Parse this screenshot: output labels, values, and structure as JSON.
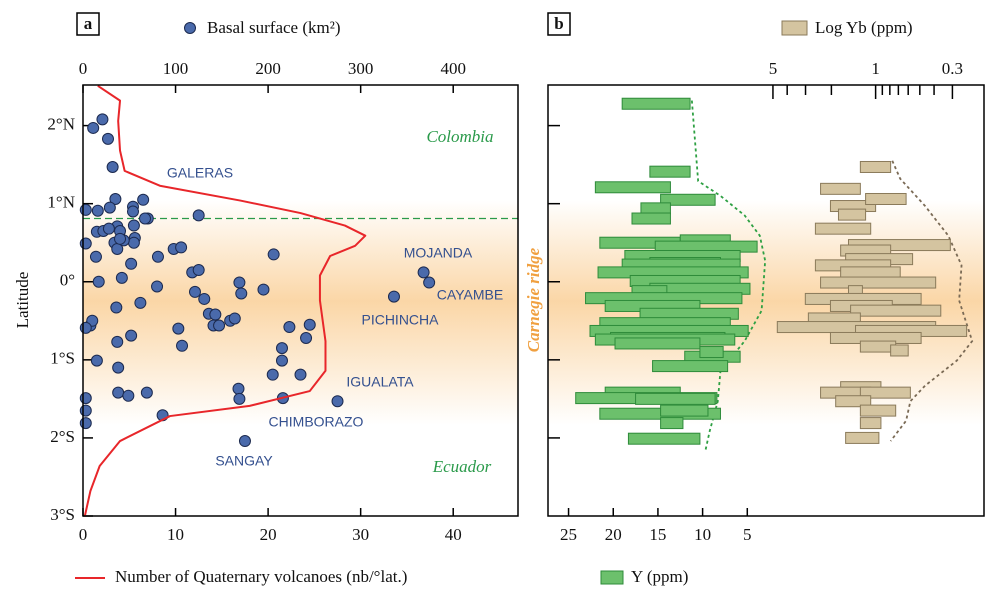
{
  "chart_data": [
    {
      "type": "scatter",
      "panel_label": "a",
      "y_label": "Latitude",
      "ylim": [
        -3,
        2.52
      ],
      "yticks": [
        {
          "value": 2,
          "label": "2°N"
        },
        {
          "value": 1,
          "label": "1°N"
        },
        {
          "value": 0,
          "label": "0°"
        },
        {
          "value": -1,
          "label": "1°S"
        },
        {
          "value": -2,
          "label": "2°S"
        },
        {
          "value": -3,
          "label": "3°S"
        }
      ],
      "xlim": [
        0,
        470
      ],
      "xticks": [
        0,
        100,
        200,
        300,
        400
      ],
      "x2lim": [
        0,
        47
      ],
      "x2ticks": [
        0,
        10,
        20,
        30,
        40
      ],
      "reference_lat": 0.81,
      "reference_color": "#2a9a4a",
      "regions": [
        "Colombia",
        "Ecuador"
      ],
      "volcano_labels": [
        "GALERAS",
        "MOJANDA",
        "CAYAMBE",
        "PICHINCHA",
        "IGUALATA",
        "CHIMBORAZO",
        "SANGAY"
      ],
      "series": [
        {
          "name": "Basal surface (km²)",
          "type": "scatter",
          "color": "#4a6aab",
          "values": [
            11,
            21,
            27,
            32,
            125,
            35,
            3,
            16,
            29,
            54,
            54,
            65,
            70,
            37,
            15,
            22,
            28,
            40,
            55,
            56,
            55,
            67,
            3,
            14,
            34,
            37,
            44,
            40,
            52,
            98,
            106,
            81,
            42,
            17,
            118,
            125,
            121,
            206,
            169,
            195,
            171,
            368,
            374,
            336,
            36,
            62,
            80,
            131,
            136,
            143,
            159,
            164,
            141,
            147,
            103,
            107,
            52,
            8,
            10,
            3,
            15,
            37,
            223,
            245,
            241,
            215,
            215,
            38,
            38,
            49,
            69,
            86,
            168,
            169,
            205,
            216,
            235,
            275,
            175,
            3,
            3,
            3
          ],
          "lat": [
            1.97,
            2.08,
            1.83,
            1.47,
            0.85,
            1.06,
            0.92,
            0.91,
            0.95,
            0.96,
            0.9,
            1.05,
            0.81,
            0.71,
            0.64,
            0.65,
            0.68,
            0.65,
            0.72,
            0.56,
            0.5,
            0.81,
            0.49,
            0.32,
            0.5,
            0.42,
            0.53,
            0.55,
            0.23,
            0.42,
            0.44,
            0.32,
            0.05,
            0,
            0.12,
            0.15,
            -0.13,
            0.35,
            -0.01,
            -0.1,
            -0.15,
            0.12,
            -0.01,
            -0.19,
            -0.33,
            -0.27,
            -0.06,
            -0.22,
            -0.41,
            -0.42,
            -0.5,
            -0.47,
            -0.56,
            -0.56,
            -0.6,
            -0.82,
            -0.69,
            -0.56,
            -0.5,
            -0.59,
            -1.01,
            -0.77,
            -0.58,
            -0.55,
            -0.72,
            -0.85,
            -1.01,
            -1.1,
            -1.42,
            -1.46,
            -1.42,
            -1.71,
            -1.37,
            -1.5,
            -1.19,
            -1.49,
            -1.19,
            -1.53,
            -2.04,
            -1.49,
            -1.65,
            -1.81
          ]
        },
        {
          "name": "Number of Quaternary volcanoes (nb/°lat.)",
          "type": "line",
          "axis": "x2",
          "color": "#e8262a",
          "values": [
            1.6,
            4,
            3.8,
            4,
            4.5,
            8.3,
            17,
            23.5,
            28.3,
            30.5,
            29.4,
            26.7,
            25.6,
            25.6,
            26.2,
            26.2,
            24.5,
            18,
            9.4,
            4,
            1.8,
            0.8,
            0.2
          ],
          "lat": [
            2.51,
            2.32,
            2.06,
            1.68,
            1.42,
            1.23,
            1.04,
            0.88,
            0.72,
            0.59,
            0.46,
            0.33,
            0.08,
            -0.24,
            -0.76,
            -1.14,
            -1.4,
            -1.59,
            -1.72,
            -2.04,
            -2.36,
            -2.68,
            -3
          ]
        }
      ]
    },
    {
      "type": "range-bar",
      "panel_label": "b",
      "annotation": "Carnegie ridge",
      "annotation_color": "#f0a040",
      "ylim": [
        -3,
        2.52
      ],
      "ytick_marks": [
        2,
        1,
        0,
        -1,
        -2
      ],
      "xscale": "log",
      "xlim": [
        170,
        0.18
      ],
      "xticks": [
        5,
        1,
        0.3
      ],
      "xticks_minor": [
        4,
        3,
        2,
        0.9,
        0.8,
        0.7,
        0.6,
        0.5,
        0.4
      ],
      "x2lim": [
        27.3,
        -21.6
      ],
      "x2ticks": [
        25,
        20,
        15,
        10,
        5
      ],
      "series": [
        {
          "name": "Y (ppm)",
          "axis": "x2",
          "color": "#6cc06c",
          "stroke": "#2e8b3a",
          "min": [
            11.4,
            11.4,
            13.6,
            8.6,
            13.6,
            13.6,
            12.5,
            6.9,
            3.9,
            5.8,
            8,
            5.8,
            4.9,
            5.8,
            4.7,
            14,
            5.6,
            10.3,
            6,
            6.9,
            4.9,
            7.5,
            6.4,
            10.3,
            5.8,
            7.7,
            7.2,
            12.5,
            8.4,
            8.6,
            8,
            9.4,
            12.2,
            10.3
          ],
          "max": [
            19,
            15.9,
            22,
            14.7,
            16.9,
            17.9,
            21.5,
            12.5,
            15.3,
            18.7,
            15.9,
            19,
            21.7,
            18.1,
            15.9,
            17.9,
            23.1,
            20.9,
            17,
            21.5,
            22.6,
            20.3,
            22,
            19.8,
            12,
            10.3,
            15.6,
            20.9,
            24.2,
            17.5,
            21.5,
            14.7,
            14.7,
            18.3
          ],
          "lat": [
            2.28,
            1.41,
            1.21,
            1.05,
            0.94,
            0.81,
            0.5,
            0.53,
            0.45,
            0.33,
            0.24,
            0.22,
            0.12,
            0.01,
            -0.09,
            -0.12,
            -0.21,
            -0.31,
            -0.41,
            -0.53,
            -0.63,
            -0.72,
            -0.74,
            -0.79,
            -0.96,
            -0.9,
            -1.08,
            -1.42,
            -1.49,
            -1.5,
            -1.69,
            -1.65,
            -1.81,
            -2.01
          ]
        },
        {
          "name": "Log Yb (ppm)",
          "axis": "x",
          "color": "#d4c4a0",
          "stroke": "#8a7a5a",
          "min": [
            0.79,
            1.27,
            1,
            0.62,
            1.17,
            1.08,
            0.31,
            0.79,
            0.56,
            0.79,
            0.68,
            0.39,
            1.23,
            0.49,
            0.77,
            0.36,
            1.27,
            0.39,
            0.24,
            0.49,
            0.73,
            0.6,
            0.92,
            1.08,
            0.58,
            1.08,
            0.73,
            0.92,
            0.95
          ],
          "max": [
            1.27,
            2.37,
            2.03,
            1.17,
            1.79,
            2.57,
            1.53,
            1.73,
            1.6,
            2.57,
            1.73,
            2.37,
            1.53,
            3.01,
            2.03,
            1.48,
            2.87,
            4.67,
            1.37,
            2.03,
            1.27,
            0.79,
            1.73,
            2.37,
            1.27,
            1.87,
            1.27,
            1.27,
            1.6
          ],
          "lat": [
            1.47,
            1.19,
            0.97,
            1.06,
            0.86,
            0.68,
            0.47,
            0.4,
            0.29,
            0.21,
            0.12,
            -0.01,
            -0.12,
            -0.22,
            -0.31,
            -0.37,
            -0.47,
            -0.58,
            -0.63,
            -0.72,
            -0.83,
            -0.88,
            -1.35,
            -1.42,
            -1.42,
            -1.53,
            -1.65,
            -1.81,
            -2
          ]
        }
      ],
      "envelopes": [
        {
          "axis": "x2",
          "color": "#2ea043",
          "values": [
            11.2,
            10.5,
            8,
            5.3,
            3.6,
            3,
            3.4,
            5.3,
            8,
            8.3,
            9.2,
            9.7
          ],
          "lat": [
            2.32,
            1.29,
            1.1,
            0.85,
            0.59,
            0.27,
            -0.37,
            -0.76,
            -1.14,
            -1.53,
            -1.91,
            -2.17
          ]
        },
        {
          "axis": "x",
          "color": "#7a6a55",
          "values": [
            0.77,
            0.68,
            0.46,
            0.32,
            0.26,
            0.27,
            0.22,
            0.28,
            0.46,
            0.58,
            0.62,
            0.79
          ],
          "lat": [
            1.55,
            1.32,
            0.97,
            0.59,
            0.21,
            -0.24,
            -0.76,
            -1.01,
            -1.33,
            -1.53,
            -1.78,
            -2.04
          ]
        }
      ]
    }
  ]
}
